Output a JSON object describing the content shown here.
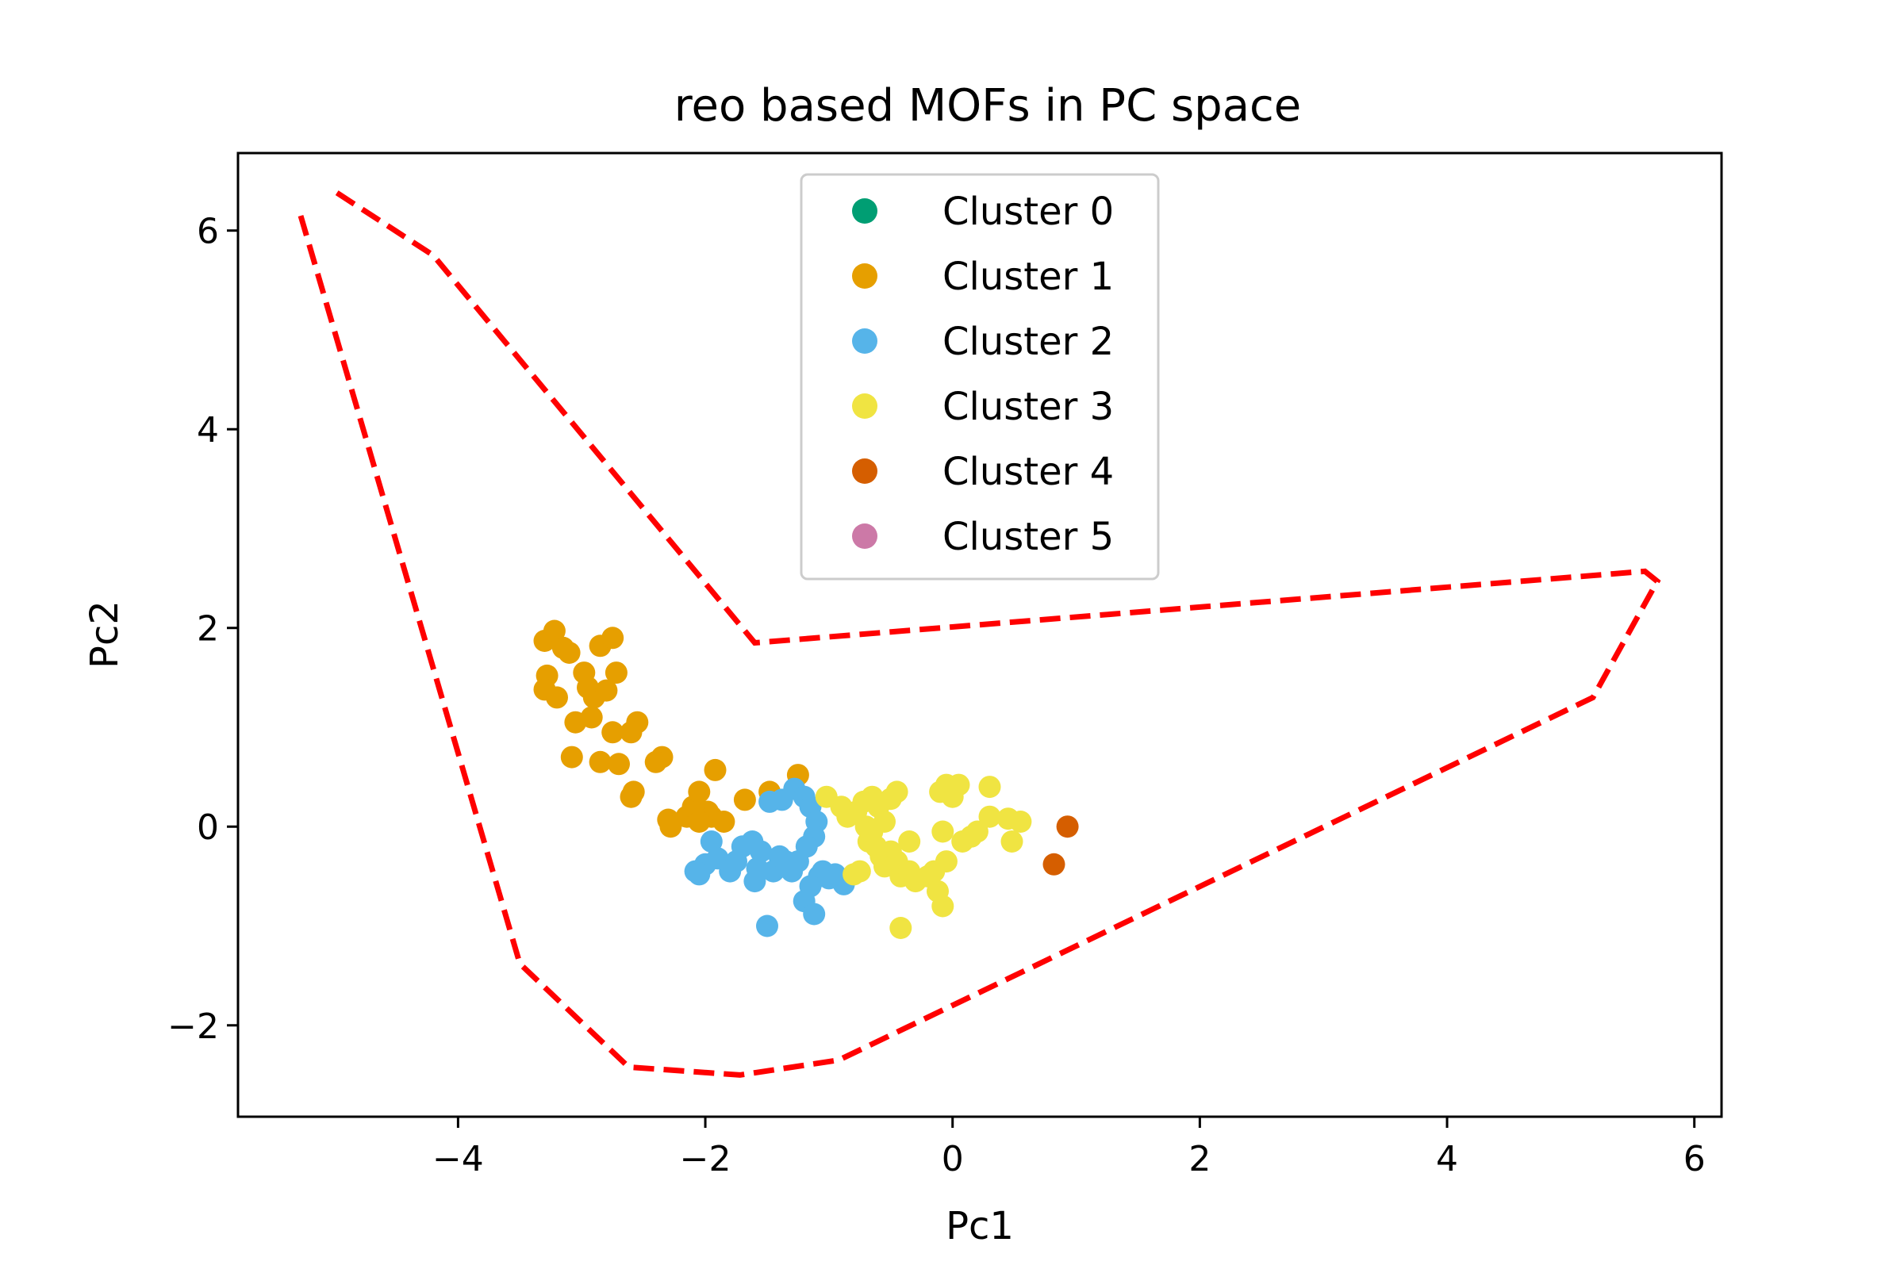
{
  "chart_data": {
    "type": "scatter",
    "title": "reo based MOFs in PC space",
    "xlabel": "Pc1",
    "ylabel": "Pc2",
    "xlim": [
      -5.78,
      6.22
    ],
    "ylim": [
      -2.92,
      6.78
    ],
    "xticks": [
      -4,
      -2,
      0,
      2,
      4,
      6
    ],
    "xtick_labels": [
      "−4",
      "−2",
      "0",
      "2",
      "4",
      "6"
    ],
    "yticks": [
      -2,
      0,
      2,
      4,
      6
    ],
    "ytick_labels": [
      "−2",
      "0",
      "2",
      "4",
      "6"
    ],
    "grid": false,
    "legend_position": "upper-center",
    "series": [
      {
        "name": "Cluster 0",
        "color": "#009E73",
        "points": []
      },
      {
        "name": "Cluster 1",
        "color": "#E69F00",
        "points": [
          [
            -3.3,
            1.87
          ],
          [
            -3.22,
            1.97
          ],
          [
            -3.15,
            1.8
          ],
          [
            -3.1,
            1.75
          ],
          [
            -3.28,
            1.52
          ],
          [
            -3.3,
            1.38
          ],
          [
            -3.2,
            1.3
          ],
          [
            -3.05,
            1.05
          ],
          [
            -2.98,
            1.55
          ],
          [
            -2.95,
            1.4
          ],
          [
            -2.9,
            1.3
          ],
          [
            -2.92,
            1.1
          ],
          [
            -2.85,
            1.82
          ],
          [
            -2.75,
            1.9
          ],
          [
            -2.72,
            1.55
          ],
          [
            -2.8,
            1.37
          ],
          [
            -2.75,
            0.95
          ],
          [
            -2.85,
            0.65
          ],
          [
            -2.7,
            0.63
          ],
          [
            -2.55,
            1.05
          ],
          [
            -2.6,
            0.95
          ],
          [
            -3.08,
            0.7
          ],
          [
            -2.35,
            0.7
          ],
          [
            -2.4,
            0.65
          ],
          [
            -2.58,
            0.35
          ],
          [
            -2.6,
            0.3
          ],
          [
            -2.3,
            0.07
          ],
          [
            -2.28,
            0.0
          ],
          [
            -2.15,
            0.1
          ],
          [
            -2.1,
            0.2
          ],
          [
            -2.05,
            0.35
          ],
          [
            -1.98,
            0.15
          ],
          [
            -1.95,
            0.1
          ],
          [
            -1.92,
            0.57
          ],
          [
            -1.68,
            0.27
          ],
          [
            -1.48,
            0.35
          ],
          [
            -1.25,
            0.52
          ],
          [
            -2.05,
            0.05
          ],
          [
            -1.85,
            0.05
          ]
        ]
      },
      {
        "name": "Cluster 2",
        "color": "#56B4E9",
        "points": [
          [
            -1.95,
            -0.15
          ],
          [
            -2.0,
            -0.38
          ],
          [
            -2.05,
            -0.48
          ],
          [
            -1.9,
            -0.32
          ],
          [
            -1.75,
            -0.35
          ],
          [
            -1.7,
            -0.2
          ],
          [
            -1.62,
            -0.15
          ],
          [
            -1.55,
            -0.25
          ],
          [
            -1.58,
            -0.42
          ],
          [
            -1.45,
            -0.45
          ],
          [
            -1.4,
            -0.3
          ],
          [
            -1.35,
            -0.35
          ],
          [
            -1.48,
            0.25
          ],
          [
            -1.38,
            0.27
          ],
          [
            -1.28,
            0.38
          ],
          [
            -1.2,
            0.3
          ],
          [
            -1.15,
            0.2
          ],
          [
            -1.1,
            0.05
          ],
          [
            -1.12,
            -0.1
          ],
          [
            -1.18,
            -0.2
          ],
          [
            -1.25,
            -0.35
          ],
          [
            -1.3,
            -0.45
          ],
          [
            -1.08,
            -0.5
          ],
          [
            -1.05,
            -0.45
          ],
          [
            -1.15,
            -0.6
          ],
          [
            -1.2,
            -0.75
          ],
          [
            -1.12,
            -0.88
          ],
          [
            -1.5,
            -1.0
          ],
          [
            -0.88,
            -0.58
          ],
          [
            -2.08,
            -0.45
          ],
          [
            -1.8,
            -0.45
          ],
          [
            -1.6,
            -0.55
          ],
          [
            -1.0,
            -0.52
          ],
          [
            -0.95,
            -0.48
          ]
        ]
      },
      {
        "name": "Cluster 3",
        "color": "#F0E442",
        "points": [
          [
            -1.02,
            0.3
          ],
          [
            -0.85,
            0.1
          ],
          [
            -0.78,
            0.15
          ],
          [
            -0.72,
            0.25
          ],
          [
            -0.65,
            0.3
          ],
          [
            -0.6,
            0.2
          ],
          [
            -0.55,
            0.05
          ],
          [
            -0.5,
            0.28
          ],
          [
            -0.45,
            0.35
          ],
          [
            -0.7,
            0.0
          ],
          [
            -0.68,
            -0.15
          ],
          [
            -0.62,
            -0.2
          ],
          [
            -0.58,
            -0.3
          ],
          [
            -0.55,
            -0.4
          ],
          [
            -0.5,
            -0.25
          ],
          [
            -0.45,
            -0.35
          ],
          [
            -0.42,
            -0.5
          ],
          [
            -0.35,
            -0.45
          ],
          [
            -0.3,
            -0.55
          ],
          [
            -0.2,
            -0.5
          ],
          [
            -0.15,
            -0.45
          ],
          [
            -0.12,
            -0.65
          ],
          [
            -0.08,
            -0.8
          ],
          [
            -0.05,
            -0.35
          ],
          [
            -0.1,
            0.35
          ],
          [
            -0.05,
            0.42
          ],
          [
            0.05,
            0.42
          ],
          [
            0.0,
            0.3
          ],
          [
            -0.08,
            -0.05
          ],
          [
            0.08,
            -0.15
          ],
          [
            0.15,
            -0.1
          ],
          [
            0.2,
            -0.05
          ],
          [
            0.3,
            0.4
          ],
          [
            0.3,
            0.1
          ],
          [
            0.45,
            0.08
          ],
          [
            0.55,
            0.05
          ],
          [
            0.48,
            -0.15
          ],
          [
            -0.42,
            -1.02
          ],
          [
            -0.8,
            -0.48
          ],
          [
            -0.75,
            -0.45
          ],
          [
            -0.9,
            0.2
          ],
          [
            -0.65,
            -0.05
          ],
          [
            -0.35,
            -0.15
          ]
        ]
      },
      {
        "name": "Cluster 4",
        "color": "#D55E00",
        "points": [
          [
            0.93,
            0.0
          ],
          [
            0.82,
            -0.38
          ]
        ]
      },
      {
        "name": "Cluster 5",
        "color": "#CC79A7",
        "points": []
      }
    ],
    "hull": {
      "color": "#FF0000",
      "style": "dashed",
      "points": [
        [
          -4.98,
          6.38
        ],
        [
          -4.2,
          5.75
        ],
        [
          -1.6,
          1.85
        ],
        [
          5.6,
          2.57
        ],
        [
          5.7,
          2.47
        ],
        [
          5.18,
          1.3
        ],
        [
          -0.92,
          -2.35
        ],
        [
          -1.72,
          -2.5
        ],
        [
          -2.62,
          -2.42
        ],
        [
          -3.5,
          -1.38
        ],
        [
          -5.28,
          6.18
        ]
      ]
    }
  }
}
